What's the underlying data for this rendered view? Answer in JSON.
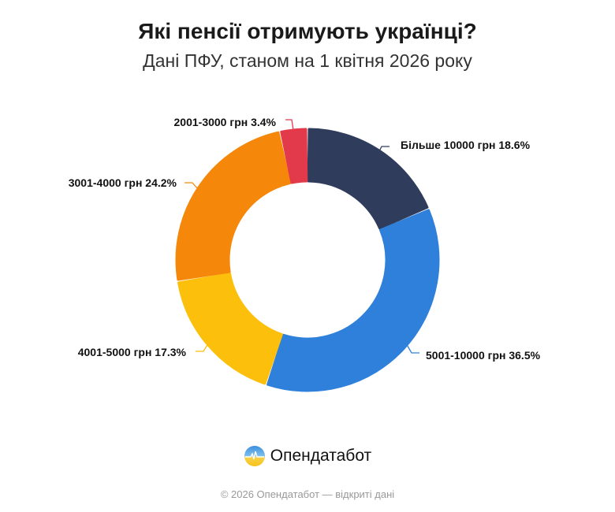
{
  "chart_data": {
    "type": "pie",
    "donut": true,
    "title": "Які пенсії отримують українці?",
    "subtitle": "Дані ПФУ, станом на 1 квітня 2026 року",
    "categories": [
      "Більше 10000 грн",
      "5001-10000 грн",
      "4001-5000 грн",
      "3001-4000 грн",
      "2001-3000 грн"
    ],
    "values": [
      18.6,
      36.5,
      17.3,
      24.2,
      3.4
    ],
    "labels": [
      "Більше 10000 грн 18.6%",
      "5001-10000 грн 36.5%",
      "4001-5000 грн 17.3%",
      "3001-4000 грн 24.2%",
      "2001-3000 грн 3.4%"
    ],
    "colors": [
      "#2f3c5c",
      "#2f80db",
      "#fbbf0c",
      "#f5880a",
      "#e33a4b"
    ],
    "start": "top",
    "direction": "clockwise"
  },
  "brand": {
    "name": "Опендатабот",
    "logo_icon": "opendatabot-logo-icon"
  },
  "footer": "© 2026 Опендатабот — відкриті дані"
}
